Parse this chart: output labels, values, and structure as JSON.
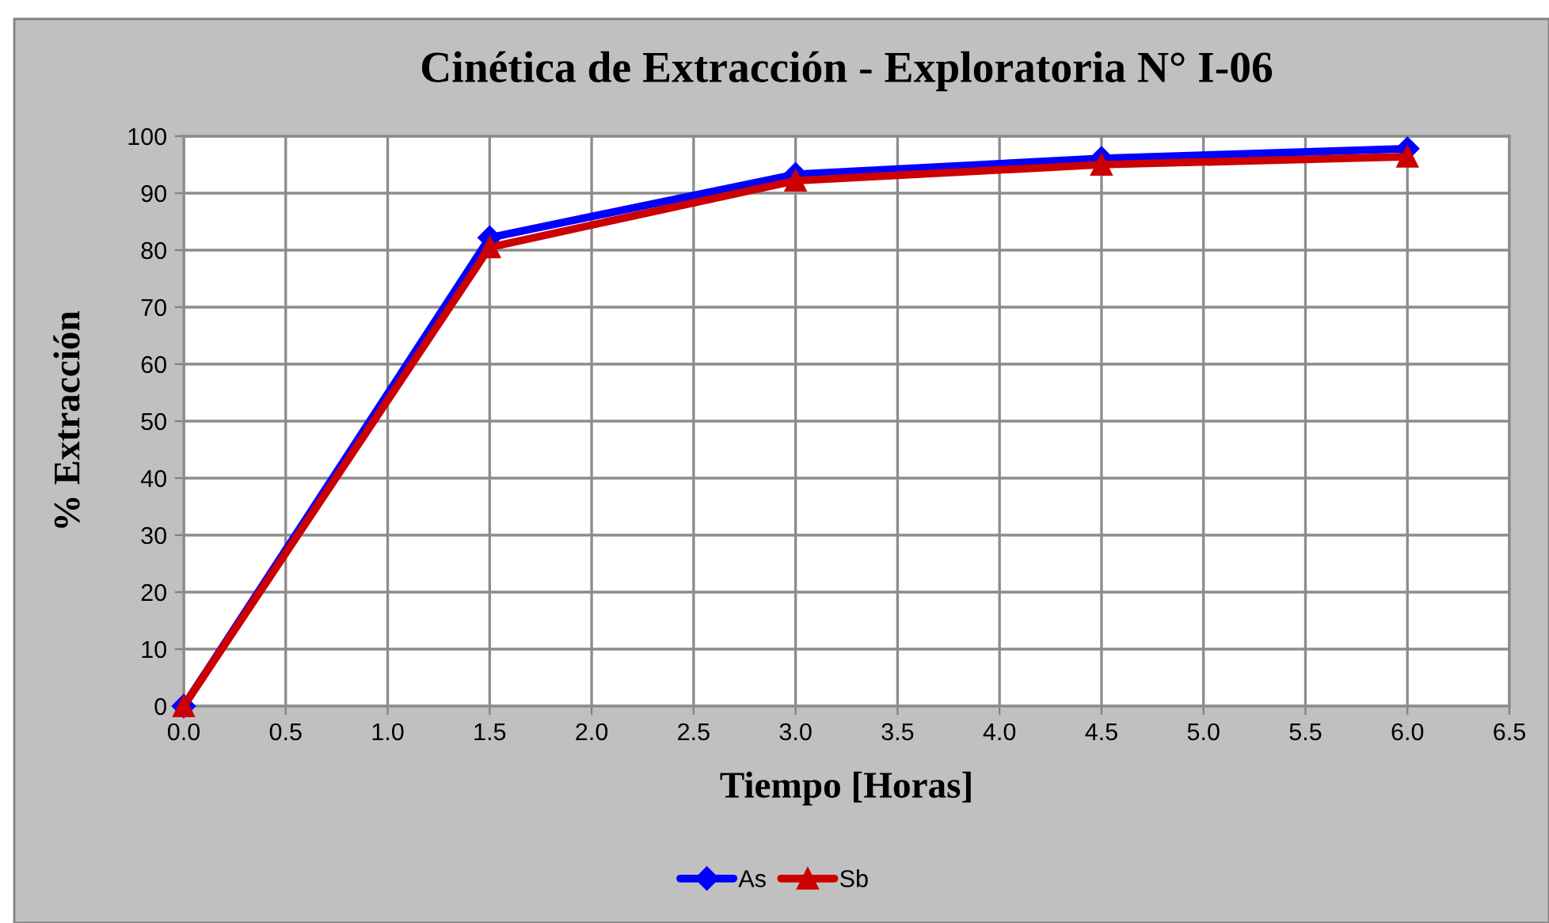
{
  "chart_data": {
    "type": "line",
    "title": "Cinética de Extracción - Exploratoria N° I-06",
    "xlabel": "Tiempo [Horas]",
    "ylabel": "% Extracción",
    "x": [
      0,
      1.5,
      3,
      4.5,
      6
    ],
    "series": [
      {
        "name": "As",
        "color": "#0000ff",
        "marker": "diamond",
        "values": [
          0,
          82.2,
          93.3,
          96.1,
          97.8
        ]
      },
      {
        "name": "Sb",
        "color": "#cc0000",
        "marker": "triangle",
        "values": [
          0,
          80.5,
          92.2,
          95.0,
          96.4
        ]
      }
    ],
    "xlim": [
      0,
      6.5
    ],
    "xticks": [
      {
        "value": 0,
        "label": "0.0"
      },
      0.5,
      {
        "value": 1,
        "label": "1.0"
      },
      1.5,
      {
        "value": 2,
        "label": "2.0"
      },
      2.5,
      {
        "value": 3,
        "label": "3.0"
      },
      3.5,
      {
        "value": 4,
        "label": "4.0"
      },
      4.5,
      {
        "value": 5,
        "label": "5.0"
      },
      5.5,
      {
        "value": 6,
        "label": "6.0"
      },
      6.5
    ],
    "ylim": [
      0,
      100
    ],
    "yticks": [
      0,
      10,
      20,
      30,
      40,
      50,
      60,
      70,
      80,
      90,
      100
    ],
    "grid": true,
    "legend": "bottom",
    "line_style": "solid"
  }
}
